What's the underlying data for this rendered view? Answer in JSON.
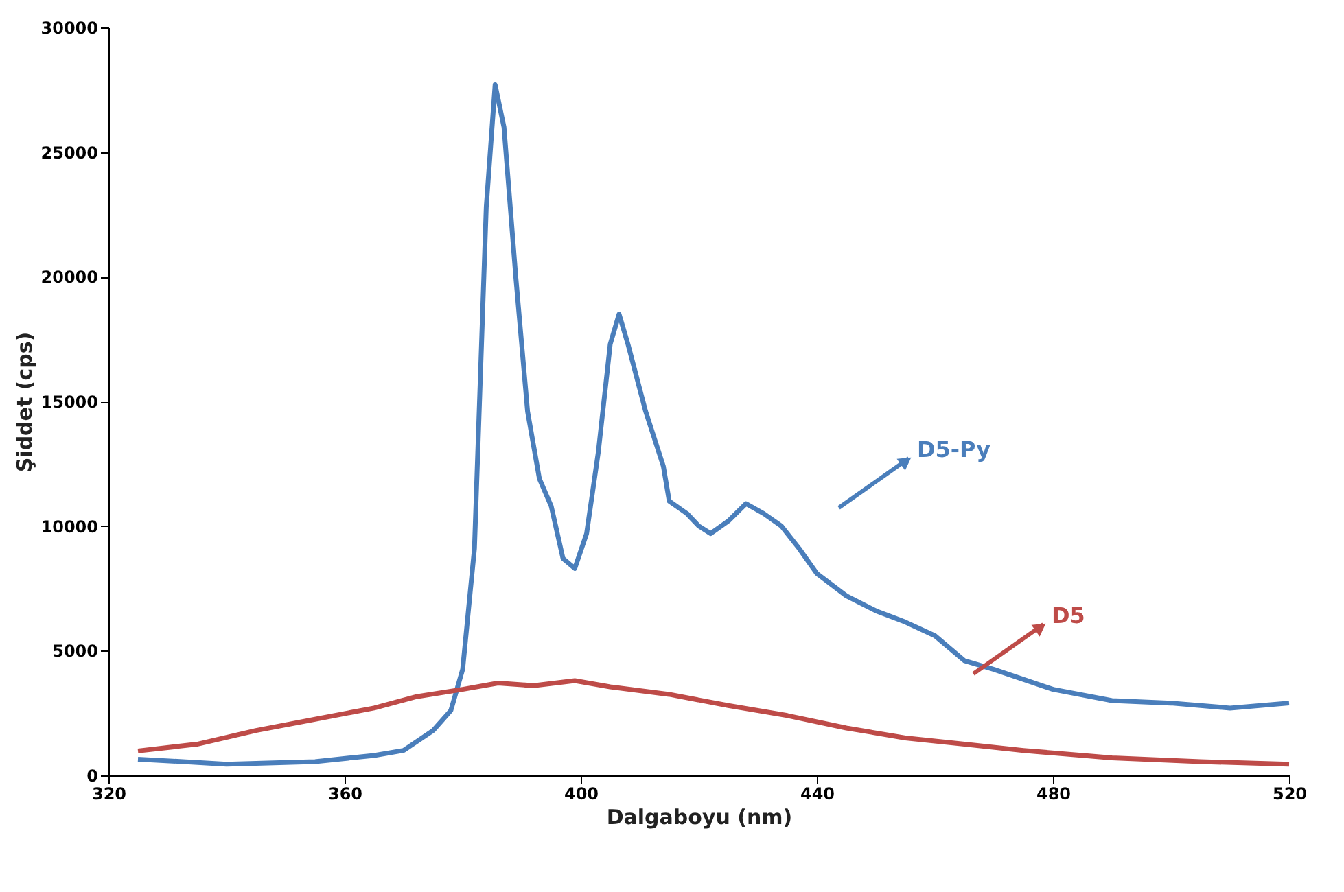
{
  "chart_data": {
    "type": "line",
    "xlabel": "Dalgaboyu (nm)",
    "ylabel": "Şiddet (cps)",
    "xlim": [
      320,
      520
    ],
    "xticks": [
      320,
      360,
      400,
      440,
      480,
      520
    ],
    "ylim": [
      0,
      30000
    ],
    "yticks": [
      0,
      5000,
      10000,
      15000,
      20000,
      25000,
      30000
    ],
    "grid": false,
    "marker": "none",
    "line_style": "solid",
    "series": [
      {
        "color": "#4a7ebb",
        "x": [
          325,
          340,
          355,
          365,
          370,
          375,
          378,
          380,
          382,
          384,
          385.5,
          387,
          389,
          391,
          393,
          395,
          397,
          399,
          401,
          403,
          405,
          406.5,
          408,
          411,
          414,
          415,
          418,
          420,
          422,
          425,
          428,
          431,
          434,
          437,
          440,
          445,
          450,
          455,
          460,
          465,
          470,
          475,
          480,
          490,
          500,
          510,
          520
        ],
        "values": [
          650,
          450,
          550,
          800,
          1000,
          1800,
          2600,
          4250,
          9100,
          22800,
          27700,
          26000,
          20000,
          14600,
          11900,
          10800,
          8700,
          8300,
          9700,
          13000,
          17300,
          18500,
          17300,
          14600,
          12400,
          11000,
          10500,
          10000,
          9700,
          10200,
          10900,
          10500,
          10000,
          9100,
          8100,
          7200,
          6600,
          6150,
          5600,
          4600,
          4250,
          3850,
          3450,
          3000,
          2900,
          2700,
          2900
        ]
      },
      {
        "color": "#be4b48",
        "x": [
          325,
          335,
          345,
          355,
          365,
          372,
          380,
          386,
          392,
          399,
          405,
          415,
          425,
          435,
          445,
          455,
          465,
          475,
          490,
          505,
          520
        ],
        "values": [
          980,
          1250,
          1800,
          2250,
          2700,
          3150,
          3450,
          3700,
          3600,
          3800,
          3550,
          3250,
          2800,
          2400,
          1900,
          1500,
          1250,
          1000,
          700,
          550,
          450
        ]
      }
    ],
    "annotations": [
      "D5-Py",
      "D5"
    ]
  }
}
